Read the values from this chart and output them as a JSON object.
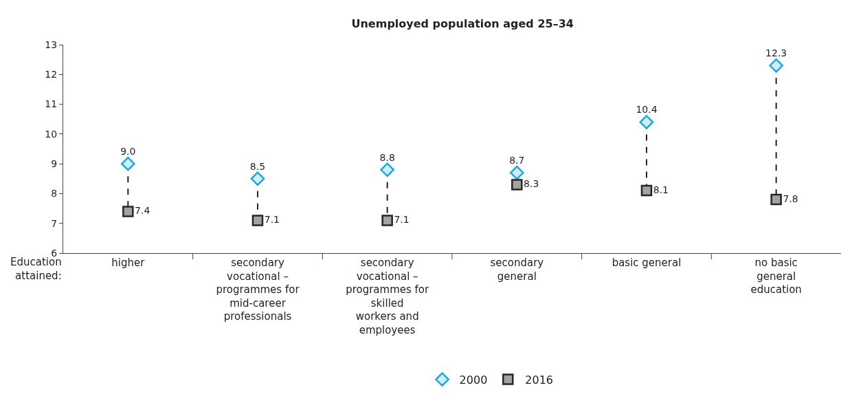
{
  "chart_data": {
    "type": "scatter",
    "title": "Unemployed population aged 25–34",
    "xlabel": "Education attained:",
    "categories": [
      "higher",
      "secondary vocational – programmes for mid-career professionals",
      "secondary vocational – programmes for skilled workers and employees",
      "secondary general",
      "basic general",
      "no basic general education"
    ],
    "series": [
      {
        "name": "2000",
        "color": "#1ea8e0",
        "marker": "diamond",
        "values": [
          9.0,
          8.5,
          8.8,
          8.7,
          10.4,
          12.3
        ],
        "value_labels": [
          "9.0",
          "8.5",
          "8.8",
          "8.7",
          "10.4",
          "12.3"
        ]
      },
      {
        "name": "2016",
        "color": "#262626",
        "marker": "square",
        "values": [
          7.4,
          7.1,
          7.1,
          8.3,
          8.1,
          7.8
        ],
        "value_labels": [
          "7.4",
          "7.1",
          "7.1",
          "8.3",
          "8.1",
          "7.8"
        ]
      }
    ],
    "ylim": [
      6,
      13
    ],
    "yticks": [
      6,
      7,
      8,
      9,
      10,
      11,
      12,
      13
    ],
    "grid": false,
    "legend": "bottom",
    "line_style": "dashed"
  }
}
